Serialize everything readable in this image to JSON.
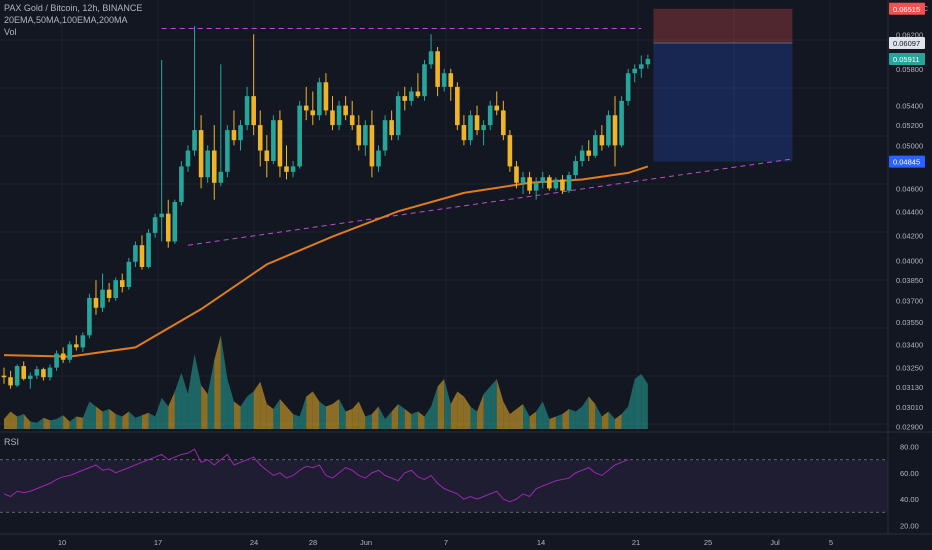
{
  "header": {
    "title": "PAX Gold / Bitcoin, 12h, BINANCE",
    "indicators": "20EMA,50MA,100EMA,200MA",
    "volume_label": "Vol"
  },
  "price_axis": {
    "currency": "BTC",
    "ticks": [
      "0.06200",
      "0.05800",
      "0.05400",
      "0.05200",
      "0.05000",
      "0.04600",
      "0.04400",
      "0.04200",
      "0.04000",
      "0.03850",
      "0.03700",
      "0.03550",
      "0.03400",
      "0.03250",
      "0.03130",
      "0.03010",
      "0.02900"
    ]
  },
  "price_tags": [
    {
      "label": "0.06515",
      "color": "#ef5350",
      "text_color": "#ffffff",
      "kind": "stop"
    },
    {
      "label": "0.06097",
      "color": "#e0e3eb",
      "text_color": "#131722",
      "kind": "entry"
    },
    {
      "label": "0.05911",
      "color": "#26a69a",
      "text_color": "#ffffff",
      "kind": "last"
    },
    {
      "label": "0.04845",
      "color": "#2962ff",
      "text_color": "#ffffff",
      "kind": "target"
    }
  ],
  "rsi": {
    "label": "RSI",
    "ticks": [
      "80.00",
      "60.00",
      "40.00",
      "20.00"
    ]
  },
  "time_axis": {
    "labels": [
      "10",
      "17",
      "24",
      "28",
      "Jun",
      "7",
      "14",
      "21",
      "25",
      "Jul",
      "5"
    ]
  },
  "colors": {
    "up": "#26a69a",
    "down": "#f0b429",
    "ma": "#e07b1f",
    "trendline": "#b94fd0",
    "rsi_line": "#9c27b0",
    "background": "#131722"
  },
  "chart_data": {
    "type": "candlestick",
    "timeframe": "12h",
    "x_labels": [
      "10",
      "17",
      "24",
      "28",
      "Jun",
      "7",
      "14",
      "21",
      "25",
      "Jul",
      "5"
    ],
    "ylim": [
      0.0288,
      0.0655
    ],
    "y_scale": "log",
    "candles": [
      [
        0.032,
        0.0325,
        0.0315,
        0.0319
      ],
      [
        0.0319,
        0.0323,
        0.0312,
        0.0314
      ],
      [
        0.0314,
        0.0327,
        0.0313,
        0.0326
      ],
      [
        0.0326,
        0.0329,
        0.0317,
        0.0318
      ],
      [
        0.0318,
        0.0322,
        0.0312,
        0.032
      ],
      [
        0.032,
        0.0326,
        0.0318,
        0.0324
      ],
      [
        0.0324,
        0.0325,
        0.0317,
        0.0319
      ],
      [
        0.0319,
        0.0327,
        0.0317,
        0.0325
      ],
      [
        0.0325,
        0.0336,
        0.0323,
        0.0334
      ],
      [
        0.0334,
        0.0338,
        0.0328,
        0.033
      ],
      [
        0.033,
        0.0342,
        0.0328,
        0.034
      ],
      [
        0.034,
        0.0346,
        0.0336,
        0.0338
      ],
      [
        0.0338,
        0.0348,
        0.0335,
        0.0346
      ],
      [
        0.0346,
        0.0375,
        0.0344,
        0.0372
      ],
      [
        0.0372,
        0.0385,
        0.036,
        0.0365
      ],
      [
        0.0365,
        0.039,
        0.0362,
        0.0378
      ],
      [
        0.0378,
        0.0383,
        0.0369,
        0.0372
      ],
      [
        0.0372,
        0.0387,
        0.037,
        0.0385
      ],
      [
        0.0385,
        0.039,
        0.0376,
        0.038
      ],
      [
        0.038,
        0.0402,
        0.0378,
        0.0399
      ],
      [
        0.0399,
        0.0415,
        0.0395,
        0.0412
      ],
      [
        0.0412,
        0.042,
        0.0393,
        0.0395
      ],
      [
        0.0395,
        0.0425,
        0.0394,
        0.0422
      ],
      [
        0.0422,
        0.0438,
        0.0418,
        0.0435
      ],
      [
        0.0435,
        0.059,
        0.0415,
        0.0438
      ],
      [
        0.0438,
        0.045,
        0.041,
        0.0415
      ],
      [
        0.0415,
        0.045,
        0.0413,
        0.0448
      ],
      [
        0.0448,
        0.0485,
        0.0445,
        0.048
      ],
      [
        0.048,
        0.05,
        0.0475,
        0.0495
      ],
      [
        0.0495,
        0.063,
        0.049,
        0.0515
      ],
      [
        0.0515,
        0.053,
        0.046,
        0.047
      ],
      [
        0.047,
        0.05,
        0.0465,
        0.0495
      ],
      [
        0.0495,
        0.052,
        0.045,
        0.0465
      ],
      [
        0.0465,
        0.0585,
        0.0462,
        0.0475
      ],
      [
        0.0475,
        0.052,
        0.047,
        0.0515
      ],
      [
        0.0515,
        0.0535,
        0.05,
        0.0505
      ],
      [
        0.0505,
        0.0525,
        0.0495,
        0.052
      ],
      [
        0.052,
        0.056,
        0.0515,
        0.055
      ],
      [
        0.055,
        0.062,
        0.051,
        0.052
      ],
      [
        0.052,
        0.0535,
        0.048,
        0.0495
      ],
      [
        0.0495,
        0.051,
        0.047,
        0.0485
      ],
      [
        0.0485,
        0.053,
        0.0482,
        0.0525
      ],
      [
        0.0525,
        0.0535,
        0.047,
        0.048
      ],
      [
        0.048,
        0.05,
        0.0468,
        0.0475
      ],
      [
        0.0475,
        0.0485,
        0.047,
        0.048
      ],
      [
        0.048,
        0.0545,
        0.0478,
        0.054
      ],
      [
        0.054,
        0.056,
        0.0525,
        0.0535
      ],
      [
        0.0535,
        0.0555,
        0.052,
        0.053
      ],
      [
        0.053,
        0.057,
        0.0525,
        0.0565
      ],
      [
        0.0565,
        0.0575,
        0.053,
        0.0535
      ],
      [
        0.0535,
        0.055,
        0.0515,
        0.052
      ],
      [
        0.052,
        0.0545,
        0.0515,
        0.054
      ],
      [
        0.054,
        0.055,
        0.0525,
        0.053
      ],
      [
        0.053,
        0.0545,
        0.0515,
        0.052
      ],
      [
        0.052,
        0.053,
        0.0495,
        0.05
      ],
      [
        0.05,
        0.0525,
        0.049,
        0.052
      ],
      [
        0.052,
        0.0535,
        0.047,
        0.048
      ],
      [
        0.048,
        0.05,
        0.0475,
        0.0495
      ],
      [
        0.0495,
        0.053,
        0.049,
        0.0525
      ],
      [
        0.0525,
        0.0535,
        0.0505,
        0.051
      ],
      [
        0.051,
        0.0555,
        0.0505,
        0.055
      ],
      [
        0.055,
        0.056,
        0.0535,
        0.0545
      ],
      [
        0.0545,
        0.056,
        0.054,
        0.0555
      ],
      [
        0.0555,
        0.0575,
        0.0548,
        0.055
      ],
      [
        0.055,
        0.059,
        0.0545,
        0.0585
      ],
      [
        0.0585,
        0.062,
        0.058,
        0.06
      ],
      [
        0.06,
        0.0605,
        0.055,
        0.056
      ],
      [
        0.056,
        0.058,
        0.0555,
        0.0575
      ],
      [
        0.0575,
        0.058,
        0.0545,
        0.056
      ],
      [
        0.056,
        0.0565,
        0.0515,
        0.052
      ],
      [
        0.052,
        0.053,
        0.05,
        0.0505
      ],
      [
        0.0505,
        0.0535,
        0.05,
        0.053
      ],
      [
        0.053,
        0.054,
        0.051,
        0.0515
      ],
      [
        0.0515,
        0.0525,
        0.05,
        0.052
      ],
      [
        0.052,
        0.0545,
        0.0515,
        0.054
      ],
      [
        0.054,
        0.0555,
        0.053,
        0.0535
      ],
      [
        0.0535,
        0.0545,
        0.0505,
        0.051
      ],
      [
        0.051,
        0.0515,
        0.0475,
        0.048
      ],
      [
        0.048,
        0.0485,
        0.046,
        0.0465
      ],
      [
        0.0465,
        0.0475,
        0.0455,
        0.047
      ],
      [
        0.047,
        0.0475,
        0.0455,
        0.0458
      ],
      [
        0.0458,
        0.047,
        0.045,
        0.0465
      ],
      [
        0.0465,
        0.0475,
        0.046,
        0.047
      ],
      [
        0.047,
        0.0472,
        0.0458,
        0.046
      ],
      [
        0.046,
        0.047,
        0.0458,
        0.0468
      ],
      [
        0.0468,
        0.0472,
        0.0455,
        0.0458
      ],
      [
        0.0458,
        0.0475,
        0.0456,
        0.0472
      ],
      [
        0.0472,
        0.049,
        0.0468,
        0.0485
      ],
      [
        0.0485,
        0.05,
        0.048,
        0.0495
      ],
      [
        0.0495,
        0.0505,
        0.0485,
        0.049
      ],
      [
        0.049,
        0.0515,
        0.0488,
        0.051
      ],
      [
        0.051,
        0.052,
        0.0495,
        0.05
      ],
      [
        0.05,
        0.0535,
        0.0498,
        0.053
      ],
      [
        0.053,
        0.055,
        0.048,
        0.05
      ],
      [
        0.05,
        0.055,
        0.0498,
        0.0545
      ],
      [
        0.0545,
        0.058,
        0.054,
        0.0575
      ],
      [
        0.0575,
        0.0585,
        0.0565,
        0.058
      ],
      [
        0.058,
        0.0595,
        0.057,
        0.0585
      ],
      [
        0.0585,
        0.0596,
        0.058,
        0.05911
      ]
    ],
    "moving_average": [
      [
        0,
        0.0333
      ],
      [
        10,
        0.0332
      ],
      [
        20,
        0.0338
      ],
      [
        30,
        0.0364
      ],
      [
        40,
        0.0397
      ],
      [
        50,
        0.0419
      ],
      [
        60,
        0.044
      ],
      [
        70,
        0.0456
      ],
      [
        80,
        0.0465
      ],
      [
        88,
        0.0468
      ],
      [
        95,
        0.0474
      ],
      [
        98,
        0.048
      ]
    ],
    "trendlines": [
      {
        "from": [
          24,
          0.0627
        ],
        "to": [
          97,
          0.0627
        ]
      },
      {
        "from": [
          28,
          0.0412
        ],
        "to": [
          120,
          0.0487
        ]
      }
    ],
    "position": {
      "stop": 0.06515,
      "entry": 0.06097,
      "target": 0.04845,
      "start_index": 99,
      "end_index": 120
    },
    "volume": [
      8,
      14,
      10,
      12,
      6,
      5,
      9,
      7,
      8,
      11,
      6,
      10,
      9,
      22,
      18,
      14,
      16,
      12,
      10,
      14,
      9,
      11,
      13,
      10,
      25,
      18,
      30,
      45,
      28,
      60,
      35,
      28,
      55,
      75,
      40,
      22,
      18,
      26,
      30,
      38,
      20,
      16,
      24,
      18,
      12,
      10,
      26,
      30,
      22,
      18,
      20,
      24,
      14,
      16,
      22,
      10,
      12,
      18,
      8,
      14,
      20,
      16,
      12,
      14,
      10,
      18,
      34,
      40,
      20,
      30,
      26,
      18,
      14,
      28,
      34,
      40,
      22,
      12,
      16,
      20,
      10,
      14,
      22,
      8,
      10,
      12,
      16,
      14,
      18,
      26,
      20,
      10,
      14,
      8,
      12,
      18,
      40,
      44,
      36,
      30,
      20
    ],
    "volume_max": 80,
    "rsi": [
      44,
      42,
      46,
      45,
      46,
      48,
      50,
      52,
      55,
      57,
      58,
      60,
      62,
      64,
      66,
      62,
      63,
      60,
      62,
      64,
      66,
      68,
      70,
      72,
      74,
      70,
      72,
      74,
      75,
      78,
      68,
      70,
      66,
      70,
      74,
      66,
      68,
      70,
      72,
      66,
      62,
      58,
      60,
      56,
      58,
      62,
      65,
      64,
      66,
      58,
      56,
      60,
      64,
      62,
      58,
      56,
      60,
      62,
      58,
      56,
      54,
      60,
      62,
      57,
      55,
      58,
      52,
      48,
      46,
      44,
      40,
      42,
      40,
      42,
      44,
      46,
      40,
      38,
      40,
      44,
      42,
      48,
      50,
      52,
      54,
      55,
      56,
      60,
      62,
      64,
      60,
      58,
      62,
      66,
      68,
      70
    ],
    "rsi_ylim": [
      15,
      85
    ]
  }
}
